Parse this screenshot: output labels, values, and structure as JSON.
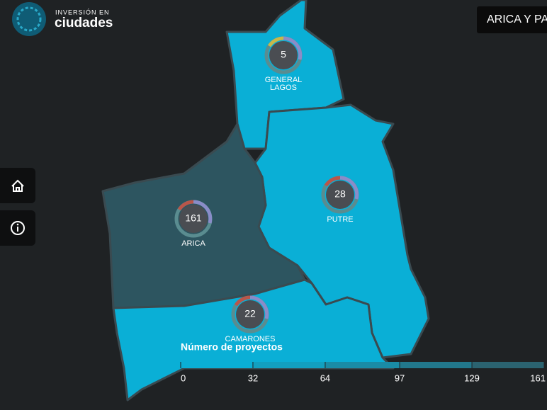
{
  "header": {
    "logo_top": "INVERSIÓN EN",
    "logo_bottom": "ciudades",
    "region_button": "ARICA Y PA"
  },
  "communes": [
    {
      "label_lines": [
        "GENERAL",
        "LAGOS"
      ],
      "projects": 5
    },
    {
      "label_lines": [
        "PUTRE"
      ],
      "projects": 28
    },
    {
      "label_lines": [
        "ARICA"
      ],
      "projects": 161
    },
    {
      "label_lines": [
        "CAMARONES"
      ],
      "projects": 22
    }
  ],
  "legend": {
    "title": "Número de proyectos",
    "ticks": [
      0,
      32,
      64,
      97,
      129,
      161
    ]
  }
}
